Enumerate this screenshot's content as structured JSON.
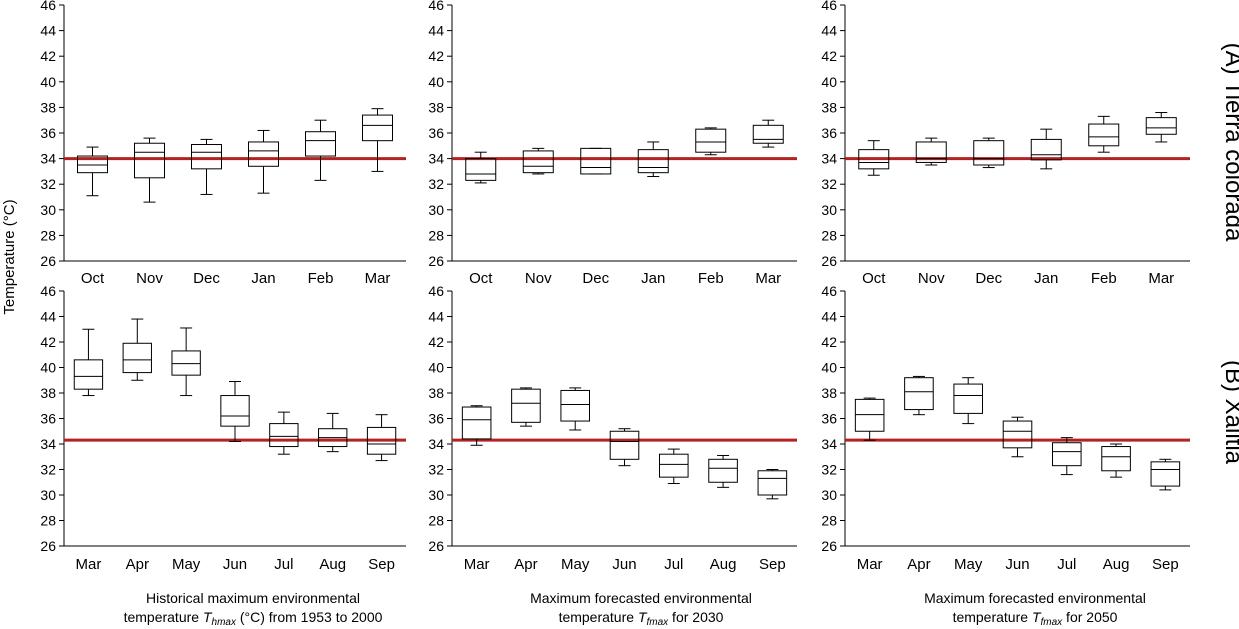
{
  "chart_data": {
    "type": "box",
    "ylabel": "Temperature (°C)",
    "ylim": [
      26,
      46
    ],
    "yticks": [
      26,
      28,
      30,
      32,
      34,
      36,
      38,
      40,
      42,
      44,
      46
    ],
    "threshold_color": "#b22222",
    "rows": [
      {
        "label": "(A) Tierra colorada",
        "threshold": 34.0,
        "categories": [
          "Oct",
          "Nov",
          "Dec",
          "Jan",
          "Feb",
          "Mar"
        ]
      },
      {
        "label": "(B) Xalitla",
        "threshold": 34.3,
        "categories": [
          "Mar",
          "Apr",
          "May",
          "Jun",
          "Jul",
          "Aug",
          "Sep"
        ]
      }
    ],
    "columns": [
      {
        "caption_line1": "Historical maximum environmental",
        "caption_pre": "temperature ",
        "caption_T": "T",
        "caption_sub": "hmax",
        "caption_post": " (°C) from 1953 to 2000"
      },
      {
        "caption_line1": "Maximum forecasted environmental",
        "caption_pre": "temperature ",
        "caption_T": "T",
        "caption_sub": "fmax",
        "caption_post": " for 2030"
      },
      {
        "caption_line1": "Maximum forecasted environmental",
        "caption_pre": "temperature ",
        "caption_T": "T",
        "caption_sub": "fmax",
        "caption_post": " for 2050"
      }
    ],
    "panels": [
      {
        "row": 0,
        "col": 0,
        "boxes": [
          {
            "min": 31.1,
            "q1": 32.9,
            "median": 33.5,
            "q3": 34.2,
            "max": 34.9
          },
          {
            "min": 30.6,
            "q1": 32.5,
            "median": 34.5,
            "q3": 35.2,
            "max": 35.6
          },
          {
            "min": 31.2,
            "q1": 33.2,
            "median": 34.5,
            "q3": 35.1,
            "max": 35.5
          },
          {
            "min": 31.3,
            "q1": 33.4,
            "median": 34.6,
            "q3": 35.3,
            "max": 36.2
          },
          {
            "min": 32.3,
            "q1": 34.2,
            "median": 35.4,
            "q3": 36.1,
            "max": 37.0
          },
          {
            "min": 33.0,
            "q1": 35.4,
            "median": 36.6,
            "q3": 37.4,
            "max": 37.9
          }
        ]
      },
      {
        "row": 0,
        "col": 1,
        "boxes": [
          {
            "min": 32.1,
            "q1": 32.3,
            "median": 32.8,
            "q3": 34.0,
            "max": 34.5
          },
          {
            "min": 32.8,
            "q1": 32.9,
            "median": 33.4,
            "q3": 34.6,
            "max": 34.8
          },
          {
            "min": 32.8,
            "q1": 32.8,
            "median": 33.3,
            "q3": 34.8,
            "max": 34.8
          },
          {
            "min": 32.6,
            "q1": 32.9,
            "median": 33.3,
            "q3": 34.7,
            "max": 35.3
          },
          {
            "min": 34.3,
            "q1": 34.5,
            "median": 35.3,
            "q3": 36.3,
            "max": 36.4
          },
          {
            "min": 34.9,
            "q1": 35.2,
            "median": 35.5,
            "q3": 36.6,
            "max": 37.0
          }
        ]
      },
      {
        "row": 0,
        "col": 2,
        "boxes": [
          {
            "min": 32.7,
            "q1": 33.2,
            "median": 33.7,
            "q3": 34.7,
            "max": 35.4
          },
          {
            "min": 33.5,
            "q1": 33.7,
            "median": 34.0,
            "q3": 35.3,
            "max": 35.6
          },
          {
            "min": 33.3,
            "q1": 33.5,
            "median": 34.0,
            "q3": 35.4,
            "max": 35.6
          },
          {
            "min": 33.2,
            "q1": 33.9,
            "median": 34.3,
            "q3": 35.5,
            "max": 36.3
          },
          {
            "min": 34.5,
            "q1": 35.0,
            "median": 35.7,
            "q3": 36.7,
            "max": 37.3
          },
          {
            "min": 35.3,
            "q1": 35.9,
            "median": 36.4,
            "q3": 37.2,
            "max": 37.6
          }
        ]
      },
      {
        "row": 1,
        "col": 0,
        "boxes": [
          {
            "min": 37.8,
            "q1": 38.3,
            "median": 39.3,
            "q3": 40.6,
            "max": 43.0
          },
          {
            "min": 39.0,
            "q1": 39.6,
            "median": 40.6,
            "q3": 41.9,
            "max": 43.8
          },
          {
            "min": 37.8,
            "q1": 39.4,
            "median": 40.3,
            "q3": 41.3,
            "max": 43.1
          },
          {
            "min": 34.2,
            "q1": 35.4,
            "median": 36.2,
            "q3": 37.8,
            "max": 38.9
          },
          {
            "min": 33.2,
            "q1": 33.8,
            "median": 34.6,
            "q3": 35.6,
            "max": 36.5
          },
          {
            "min": 33.4,
            "q1": 33.8,
            "median": 34.5,
            "q3": 35.2,
            "max": 36.4
          },
          {
            "min": 32.7,
            "q1": 33.2,
            "median": 34.0,
            "q3": 35.3,
            "max": 36.3
          }
        ]
      },
      {
        "row": 1,
        "col": 1,
        "boxes": [
          {
            "min": 33.9,
            "q1": 34.4,
            "median": 35.9,
            "q3": 36.9,
            "max": 37.0
          },
          {
            "min": 35.4,
            "q1": 35.7,
            "median": 37.2,
            "q3": 38.3,
            "max": 38.4
          },
          {
            "min": 35.1,
            "q1": 35.8,
            "median": 37.1,
            "q3": 38.2,
            "max": 38.4
          },
          {
            "min": 32.3,
            "q1": 32.8,
            "median": 34.2,
            "q3": 35.0,
            "max": 35.2
          },
          {
            "min": 30.9,
            "q1": 31.4,
            "median": 32.4,
            "q3": 33.2,
            "max": 33.6
          },
          {
            "min": 30.6,
            "q1": 31.0,
            "median": 32.1,
            "q3": 32.8,
            "max": 33.1
          },
          {
            "min": 29.7,
            "q1": 30.0,
            "median": 31.3,
            "q3": 31.9,
            "max": 32.0
          }
        ]
      },
      {
        "row": 1,
        "col": 2,
        "boxes": [
          {
            "min": 34.3,
            "q1": 35.0,
            "median": 36.3,
            "q3": 37.5,
            "max": 37.6
          },
          {
            "min": 36.3,
            "q1": 36.7,
            "median": 38.1,
            "q3": 39.2,
            "max": 39.3
          },
          {
            "min": 35.6,
            "q1": 36.4,
            "median": 37.8,
            "q3": 38.7,
            "max": 39.2
          },
          {
            "min": 33.0,
            "q1": 33.7,
            "median": 35.0,
            "q3": 35.8,
            "max": 36.1
          },
          {
            "min": 31.6,
            "q1": 32.3,
            "median": 33.4,
            "q3": 34.1,
            "max": 34.5
          },
          {
            "min": 31.4,
            "q1": 31.9,
            "median": 33.0,
            "q3": 33.8,
            "max": 34.0
          },
          {
            "min": 30.4,
            "q1": 30.7,
            "median": 32.0,
            "q3": 32.6,
            "max": 32.8
          }
        ]
      }
    ]
  }
}
